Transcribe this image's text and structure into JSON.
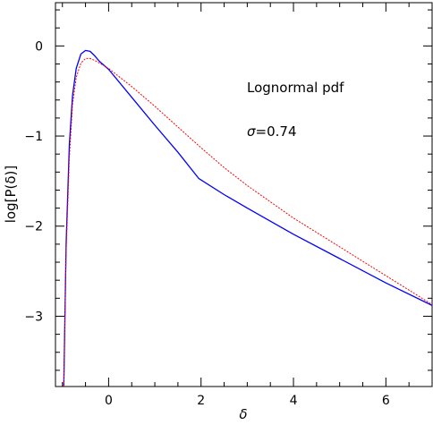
{
  "chart_data": {
    "type": "line",
    "title": "",
    "xlabel": "δ",
    "ylabel": "log[P(δ)]",
    "xlim": [
      -1.15,
      7.0
    ],
    "ylim": [
      -3.78,
      0.48
    ],
    "x_ticks": [
      0,
      2,
      4,
      6
    ],
    "x_tick_labels": [
      "0",
      "2",
      "4",
      "6"
    ],
    "y_ticks": [
      0,
      -1,
      -2,
      -3
    ],
    "y_tick_labels": [
      "0",
      "−1",
      "−2",
      "−3"
    ],
    "grid": false,
    "legend": "none",
    "annotations": {
      "pdf_label": "Lognormal pdf",
      "sigma_symbol": "σ",
      "sigma_value": "=0.74"
    },
    "series": [
      {
        "color": "#0000ff",
        "style": "solid",
        "x": [
          -0.97,
          -0.92,
          -0.85,
          -0.78,
          -0.7,
          -0.6,
          -0.5,
          -0.4,
          -0.3,
          -0.2,
          0.0,
          0.5,
          1.0,
          1.5,
          1.95,
          2.5,
          3.0,
          4.0,
          5.0,
          6.0,
          7.0
        ],
        "y": [
          -3.78,
          -2.2,
          -1.1,
          -0.55,
          -0.25,
          -0.09,
          -0.05,
          -0.06,
          -0.11,
          -0.17,
          -0.26,
          -0.57,
          -0.88,
          -1.18,
          -1.47,
          -1.65,
          -1.8,
          -2.09,
          -2.36,
          -2.63,
          -2.88
        ]
      },
      {
        "color": "#ff0000",
        "style": "dashed",
        "x": [
          -0.97,
          -0.92,
          -0.85,
          -0.78,
          -0.7,
          -0.6,
          -0.5,
          -0.4,
          -0.3,
          -0.2,
          0.0,
          0.5,
          1.0,
          1.5,
          2.0,
          2.5,
          3.0,
          4.0,
          5.0,
          6.0,
          7.0
        ],
        "y": [
          -3.78,
          -2.3,
          -1.25,
          -0.65,
          -0.35,
          -0.19,
          -0.14,
          -0.14,
          -0.16,
          -0.19,
          -0.25,
          -0.45,
          -0.67,
          -0.9,
          -1.13,
          -1.35,
          -1.55,
          -1.91,
          -2.23,
          -2.55,
          -2.87
        ]
      }
    ]
  }
}
